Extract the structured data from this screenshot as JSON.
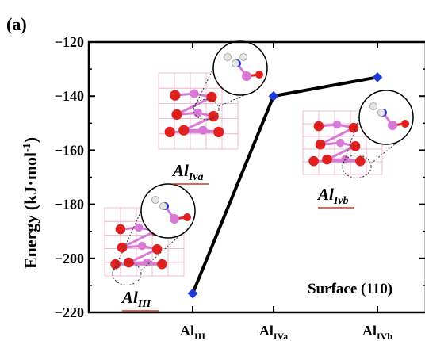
{
  "chart_data": {
    "type": "line",
    "panel_label": "(a)",
    "ylabel": "Energy (kJ·mol⁻¹)",
    "ylabel_main": "Energy (kJ·mol",
    "ylabel_sup": "-1",
    "ylabel_close": ")",
    "ylim": [
      -220,
      -120
    ],
    "yticks": [
      -220,
      -200,
      -180,
      -160,
      -140,
      -120
    ],
    "ytick_labels": [
      "−220",
      "−200",
      "−180",
      "−160",
      "−140",
      "−120"
    ],
    "categories": [
      "AlIII",
      "AlIVa",
      "AlIVb"
    ],
    "category_labels": [
      {
        "main": "Al",
        "sub": "III"
      },
      {
        "main": "Al",
        "sub": "IVa"
      },
      {
        "main": "Al",
        "sub": "IVb"
      }
    ],
    "series": [
      {
        "values": [
          -213,
          -140,
          -133
        ],
        "line_color": "#000000",
        "marker_color": "#1f3bd6"
      }
    ],
    "annotations": [
      {
        "main": "Al",
        "sub": "III"
      },
      {
        "main": "Al",
        "sub": "Iva"
      },
      {
        "main": "Al",
        "sub": "Ivb"
      }
    ],
    "surface_label": "Surface (110)",
    "grid": false
  },
  "colors": {
    "oxygen": "#e0201f",
    "aluminum": "#d67ad6",
    "nitrogen": "#1a2fd0",
    "hydrogen": "#e6e6e6",
    "bond_mesh": "#f2a8c8",
    "underline": "#d83030"
  }
}
